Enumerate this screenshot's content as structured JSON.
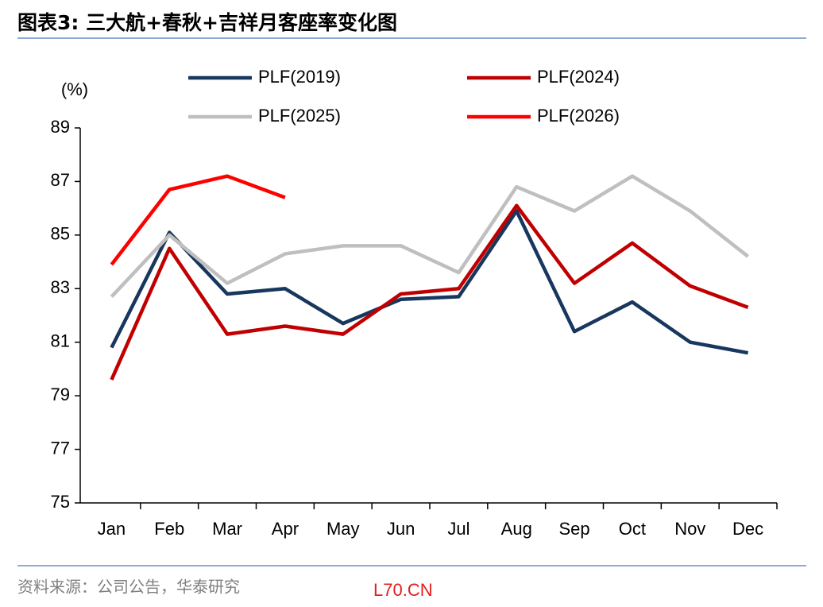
{
  "title": "图表3:  三大航+春秋+吉祥月客座率变化图",
  "source": "资料来源：公司公告，华泰研究",
  "watermark": "L70.CN",
  "chart_data": {
    "type": "line",
    "y_label": "(%)",
    "categories": [
      "Jan",
      "Feb",
      "Mar",
      "Apr",
      "May",
      "Jun",
      "Jul",
      "Aug",
      "Sep",
      "Oct",
      "Nov",
      "Dec"
    ],
    "series": [
      {
        "name": "PLF(2019)",
        "color": "#17375e",
        "values": [
          80.8,
          85.1,
          82.8,
          83.0,
          81.7,
          82.6,
          82.7,
          85.9,
          81.4,
          82.5,
          81.0,
          80.6
        ]
      },
      {
        "name": "PLF(2024)",
        "color": "#c00000",
        "values": [
          79.6,
          84.5,
          81.3,
          81.6,
          81.3,
          82.8,
          83.0,
          86.1,
          83.2,
          84.7,
          83.1,
          82.3
        ]
      },
      {
        "name": "PLF(2025)",
        "color": "#bfbfbf",
        "values": [
          82.7,
          85.0,
          83.2,
          84.3,
          84.6,
          84.6,
          83.6,
          86.8,
          85.9,
          87.2,
          85.9,
          84.2
        ]
      },
      {
        "name": "PLF(2026)",
        "color": "#ff0000",
        "values": [
          83.9,
          86.7,
          87.2,
          86.4,
          null,
          null,
          null,
          null,
          null,
          null,
          null,
          null
        ]
      }
    ],
    "ylim": [
      75,
      89
    ],
    "yticks": [
      75,
      77,
      79,
      81,
      83,
      85,
      87,
      89
    ],
    "grid": false,
    "legend": "top"
  }
}
